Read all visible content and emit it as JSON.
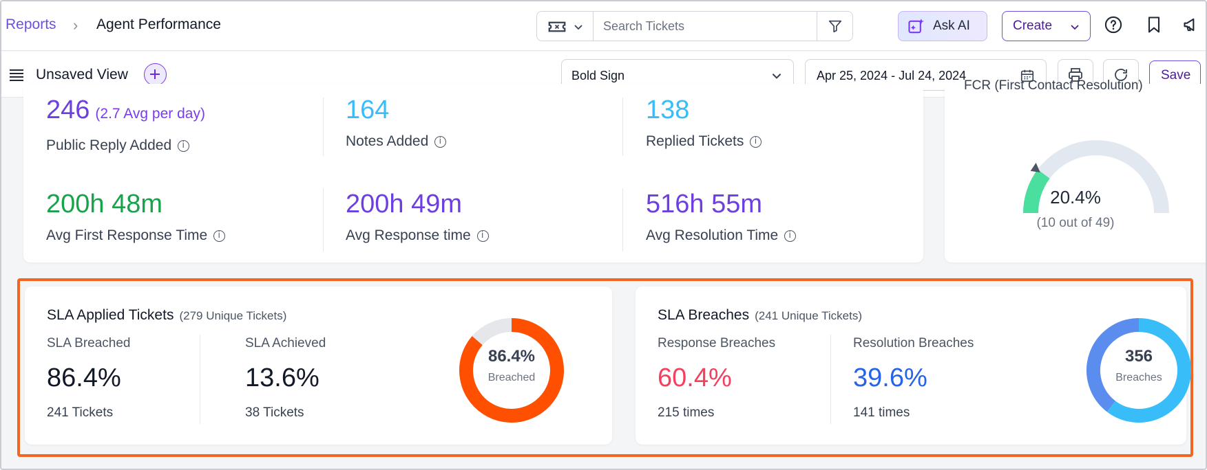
{
  "breadcrumb": {
    "parent": "Reports",
    "separator": "›",
    "current": "Agent Performance"
  },
  "search": {
    "placeholder": "Search Tickets"
  },
  "header": {
    "ask_ai": "Ask AI",
    "create": "Create"
  },
  "view": {
    "title": "Unsaved View",
    "brand_select": "Bold Sign",
    "date_range": "Apr 25, 2024 - Jul 24, 2024",
    "save": "Save"
  },
  "metrics": [
    {
      "value": "246",
      "sub": "(2.7 Avg per day)",
      "label": "Public Reply Added",
      "color": "#6d3fe0"
    },
    {
      "value": "164",
      "sub": "",
      "label": "Notes Added",
      "color": "#38bdf8"
    },
    {
      "value": "138",
      "sub": "",
      "label": "Replied Tickets",
      "color": "#38bdf8"
    },
    {
      "value": "200h 48m",
      "sub": "",
      "label": "Avg First Response Time",
      "color": "#16a34a"
    },
    {
      "value": "200h 49m",
      "sub": "",
      "label": "Avg Response time",
      "color": "#6d3fe0"
    },
    {
      "value": "516h 55m",
      "sub": "",
      "label": "Avg Resolution Time",
      "color": "#6d3fe0"
    }
  ],
  "fcr": {
    "title": "FCR (First Contact Resolution)",
    "value": "20.4%",
    "sub": "(10 out of 49)",
    "fraction": 0.204,
    "color": "#4ade9f"
  },
  "sla_applied": {
    "title": "SLA Applied Tickets",
    "subtitle": "(279 Unique Tickets)",
    "stats": [
      {
        "label": "SLA Breached",
        "value": "86.4%",
        "sub": "241 Tickets",
        "color": "#111827"
      },
      {
        "label": "SLA Achieved",
        "value": "13.6%",
        "sub": "38 Tickets",
        "color": "#111827"
      }
    ],
    "donut": {
      "value": "86.4%",
      "label": "Breached",
      "fraction": 0.864,
      "color": "#ff4f00",
      "track": "#e5e7eb"
    }
  },
  "sla_breaches": {
    "title": "SLA Breaches",
    "subtitle": "(241 Unique Tickets)",
    "stats": [
      {
        "label": "Response Breaches",
        "value": "60.4%",
        "sub": "215 times",
        "color": "#f43f5e"
      },
      {
        "label": "Resolution Breaches",
        "value": "39.6%",
        "sub": "141 times",
        "color": "#2563eb"
      }
    ],
    "donut": {
      "value": "356",
      "label": "Breaches",
      "fraction": 0.604,
      "color": "#38bdf8",
      "second_color": "#5b8def"
    }
  }
}
